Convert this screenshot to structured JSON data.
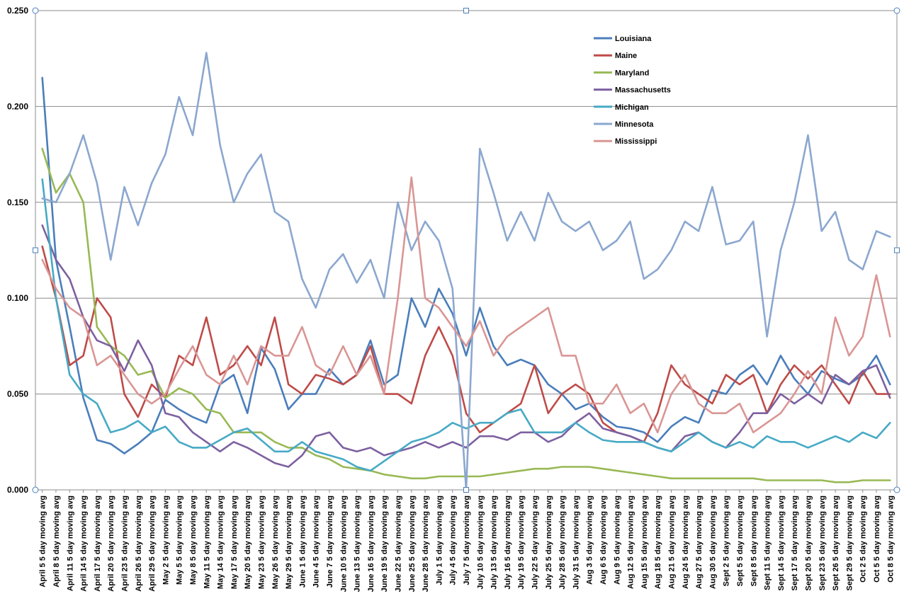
{
  "chart_data": {
    "type": "line",
    "title": "",
    "xlabel": "",
    "ylabel": "",
    "ylim": [
      0,
      0.25
    ],
    "yticks": [
      0,
      0.05,
      0.1,
      0.15,
      0.2,
      0.25
    ],
    "ytick_labels": [
      "0.000",
      "0.050",
      "0.100",
      "0.150",
      "0.200",
      "0.250"
    ],
    "grid": true,
    "legend_position": "top-right",
    "categories": [
      "April 5 5 day moving avg",
      "April 8 5 day moving avg",
      "April 11 5 day moving avg",
      "April 14 5 day moving avg",
      "April 17 5 day moving avg",
      "April 20 5 day moving avg",
      "April 23 5 day moving avg",
      "April 26 5 day moving avg",
      "April 29 5 day moving avg",
      "May 2 5 day moving avg",
      "May 5 5 day moving avg",
      "May 8 5 day moving avg",
      "May 11 5 day moving avg",
      "May 14 5 day moving avg",
      "May 17 5 day moving avg",
      "May 20 5 day moving avg",
      "May 23 5 day moving avg",
      "May 26 5 day moving avg",
      "May 29 5 day moving avg",
      "June 1 5 day moving avg",
      "June 4 5 day moving avg",
      "June 7 5 day moving avg",
      "June 10 5 day moving avg",
      "June 13 5 day moving avg",
      "June 16 5 day moving avg",
      "June 19 5 day moving avg",
      "June 22 5 day moving avg",
      "June 25 5 day moving avg",
      "June 28 5 day moving avg",
      "July 1 5 day moving avg",
      "July 4 5 day moving avg",
      "July 7 5 day moving avg",
      "July 10 5 day moving avg",
      "July 13 5 day moving avg",
      "July 16 5 day moving avg",
      "July 19 5 day moving avg",
      "July 22 5 day moving avg",
      "July 25 5 day moving avg",
      "July 28 5 day moving avg",
      "July 31 5 day moving avg",
      "Aug 3 5 day moving avg",
      "Aug 6 5 day moving avg",
      "Aug 9 5 day moving avg",
      "Aug 12 5 day moving avg",
      "Aug 15 5 day moving avg",
      "Aug 18 5 day moving avg",
      "Aug 21 5 day moving avg",
      "Aug 24 5 day moving avg",
      "Aug 27 5 day moving avg",
      "Aug 30 5 day moving avg",
      "Sept 2 5 day moving avg",
      "Sept 5 5 day moving avg",
      "Sept 8 5 day moving avg",
      "Sept 11 5 day moving avg",
      "Sept 14 5 day moving avg",
      "Sept 17 5 day moving avg",
      "Sept 20 5 day moving avg",
      "Sept 23 5 day moving avg",
      "Sept 26 5 day moving avg",
      "Sept 29 5 day moving avg",
      "Oct 2 5 day moving avg",
      "Oct 5 5 day moving avg",
      "Oct 8 5 day moving avg"
    ],
    "series": [
      {
        "name": "Louisiana",
        "color": "#4a7ebb",
        "values": [
          0.215,
          0.12,
          0.085,
          0.048,
          0.026,
          0.024,
          0.019,
          0.024,
          0.03,
          0.047,
          0.042,
          0.038,
          0.035,
          0.055,
          0.06,
          0.04,
          0.074,
          0.063,
          0.042,
          0.05,
          0.05,
          0.063,
          0.055,
          0.06,
          0.078,
          0.055,
          0.06,
          0.1,
          0.085,
          0.105,
          0.092,
          0.07,
          0.095,
          0.075,
          0.065,
          0.068,
          0.065,
          0.055,
          0.05,
          0.042,
          0.045,
          0.038,
          0.033,
          0.032,
          0.03,
          0.025,
          0.033,
          0.038,
          0.035,
          0.052,
          0.05,
          0.06,
          0.065,
          0.055,
          0.07,
          0.058,
          0.05,
          0.062,
          0.058,
          0.055,
          0.06,
          0.07,
          0.055
        ]
      },
      {
        "name": "Maine",
        "color": "#be4b48",
        "values": [
          0.127,
          0.1,
          0.065,
          0.07,
          0.1,
          0.09,
          0.05,
          0.038,
          0.055,
          0.048,
          0.07,
          0.065,
          0.09,
          0.06,
          0.065,
          0.075,
          0.065,
          0.09,
          0.055,
          0.05,
          0.06,
          0.058,
          0.055,
          0.06,
          0.075,
          0.05,
          0.05,
          0.045,
          0.07,
          0.085,
          0.07,
          0.04,
          0.03,
          0.035,
          0.04,
          0.045,
          0.065,
          0.04,
          0.05,
          0.055,
          0.05,
          0.035,
          0.03,
          0.028,
          0.025,
          0.04,
          0.065,
          0.055,
          0.05,
          0.045,
          0.06,
          0.055,
          0.06,
          0.04,
          0.055,
          0.065,
          0.058,
          0.065,
          0.055,
          0.045,
          0.062,
          0.05,
          0.05
        ]
      },
      {
        "name": "Maryland",
        "color": "#98b954",
        "values": [
          0.178,
          0.155,
          0.165,
          0.15,
          0.085,
          0.075,
          0.07,
          0.06,
          0.062,
          0.048,
          0.053,
          0.05,
          0.042,
          0.04,
          0.03,
          0.03,
          0.03,
          0.025,
          0.022,
          0.022,
          0.018,
          0.016,
          0.012,
          0.011,
          0.01,
          0.008,
          0.007,
          0.006,
          0.006,
          0.007,
          0.007,
          0.007,
          0.007,
          0.008,
          0.009,
          0.01,
          0.011,
          0.011,
          0.012,
          0.012,
          0.012,
          0.011,
          0.01,
          0.009,
          0.008,
          0.007,
          0.006,
          0.006,
          0.006,
          0.006,
          0.006,
          0.006,
          0.006,
          0.005,
          0.005,
          0.005,
          0.005,
          0.005,
          0.004,
          0.004,
          0.005,
          0.005,
          0.005
        ]
      },
      {
        "name": "Massachusetts",
        "color": "#7d60a0",
        "values": [
          0.138,
          0.12,
          0.11,
          0.09,
          0.078,
          0.075,
          0.062,
          0.078,
          0.065,
          0.04,
          0.038,
          0.03,
          0.025,
          0.02,
          0.025,
          0.022,
          0.018,
          0.014,
          0.012,
          0.018,
          0.028,
          0.03,
          0.022,
          0.02,
          0.022,
          0.018,
          0.02,
          0.022,
          0.025,
          0.022,
          0.025,
          0.022,
          0.028,
          0.028,
          0.026,
          0.03,
          0.03,
          0.025,
          0.028,
          0.035,
          0.04,
          0.032,
          0.03,
          0.028,
          0.025,
          0.022,
          0.02,
          0.028,
          0.03,
          0.025,
          0.022,
          0.03,
          0.04,
          0.04,
          0.05,
          0.045,
          0.05,
          0.045,
          0.06,
          0.055,
          0.062,
          0.065,
          0.048
        ]
      },
      {
        "name": "Michigan",
        "color": "#46aac5",
        "values": [
          0.162,
          0.1,
          0.06,
          0.05,
          0.045,
          0.03,
          0.032,
          0.036,
          0.03,
          0.033,
          0.025,
          0.022,
          0.022,
          0.026,
          0.03,
          0.032,
          0.026,
          0.02,
          0.02,
          0.025,
          0.02,
          0.018,
          0.016,
          0.012,
          0.01,
          0.015,
          0.02,
          0.025,
          0.027,
          0.03,
          0.035,
          0.032,
          0.035,
          0.035,
          0.04,
          0.042,
          0.03,
          0.03,
          0.03,
          0.035,
          0.03,
          0.026,
          0.025,
          0.025,
          0.025,
          0.022,
          0.02,
          0.025,
          0.03,
          0.025,
          0.022,
          0.025,
          0.022,
          0.028,
          0.025,
          0.025,
          0.022,
          0.025,
          0.028,
          0.025,
          0.03,
          0.027,
          0.035
        ]
      },
      {
        "name": "Minnesota",
        "color": "#8ba7cf",
        "values": [
          0.152,
          0.15,
          0.165,
          0.185,
          0.16,
          0.12,
          0.158,
          0.138,
          0.16,
          0.175,
          0.205,
          0.185,
          0.228,
          0.18,
          0.15,
          0.165,
          0.175,
          0.145,
          0.14,
          0.11,
          0.095,
          0.115,
          0.123,
          0.108,
          0.12,
          0.1,
          0.15,
          0.125,
          0.14,
          0.13,
          0.105,
          0.0,
          0.178,
          0.155,
          0.13,
          0.145,
          0.13,
          0.155,
          0.14,
          0.135,
          0.14,
          0.125,
          0.13,
          0.14,
          0.11,
          0.115,
          0.125,
          0.14,
          0.135,
          0.158,
          0.128,
          0.13,
          0.14,
          0.08,
          0.125,
          0.15,
          0.185,
          0.135,
          0.145,
          0.12,
          0.115,
          0.135,
          0.132
        ]
      },
      {
        "name": "Mississippi",
        "color": "#d99694",
        "values": [
          0.12,
          0.105,
          0.095,
          0.09,
          0.065,
          0.07,
          0.06,
          0.05,
          0.045,
          0.05,
          0.063,
          0.075,
          0.06,
          0.055,
          0.07,
          0.055,
          0.075,
          0.07,
          0.07,
          0.085,
          0.065,
          0.06,
          0.075,
          0.06,
          0.07,
          0.05,
          0.1,
          0.163,
          0.1,
          0.095,
          0.085,
          0.075,
          0.088,
          0.07,
          0.08,
          0.085,
          0.09,
          0.095,
          0.07,
          0.07,
          0.045,
          0.045,
          0.055,
          0.04,
          0.045,
          0.03,
          0.05,
          0.06,
          0.045,
          0.04,
          0.04,
          0.045,
          0.03,
          0.035,
          0.04,
          0.05,
          0.062,
          0.05,
          0.09,
          0.07,
          0.08,
          0.112,
          0.08
        ]
      }
    ]
  }
}
